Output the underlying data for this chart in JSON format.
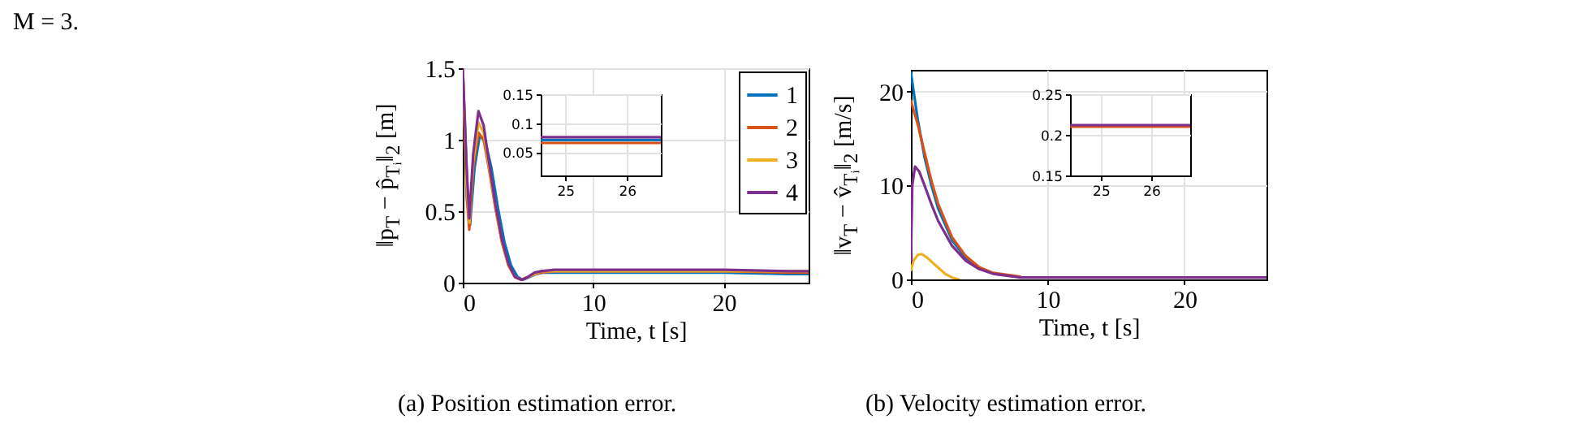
{
  "chart_data": [
    {
      "type": "line",
      "xlabel": "Time, t [s]",
      "ylabel": "‖p$_{T}$ − p̂$_{Tᵢ}$‖$_{2}$ [m]",
      "annotations": [
        "M = 3.",
        "(a) Position estimation error."
      ],
      "xlim": [
        0,
        26.5
      ],
      "ylim": [
        0,
        1.5
      ],
      "xticks": [
        0,
        10,
        20
      ],
      "yticks": [
        0,
        0.5,
        1,
        1.5
      ],
      "grid": true,
      "legend": "top right",
      "line_style": "solid",
      "x": [
        0,
        0.3,
        0.5,
        0.8,
        1.2,
        1.6,
        2,
        2.5,
        3,
        3.5,
        4,
        4.5,
        5,
        5.5,
        6,
        7,
        8,
        10,
        15,
        20,
        25,
        26.5
      ],
      "series": [
        {
          "name": "1",
          "color": "#0072bd",
          "x": [
            0,
            0.35,
            0.55,
            0.9,
            1.3,
            1.75,
            2.2,
            2.7,
            3.2,
            3.7,
            4.2,
            4.6,
            5.1,
            5.6,
            6.1,
            7,
            8,
            10,
            15,
            20,
            25,
            26.5
          ],
          "values": [
            1.5,
            0.65,
            0.4,
            0.8,
            1.03,
            0.98,
            0.8,
            0.52,
            0.28,
            0.12,
            0.04,
            0.02,
            0.04,
            0.06,
            0.07,
            0.07,
            0.07,
            0.07,
            0.07,
            0.07,
            0.06,
            0.06
          ]
        },
        {
          "name": "2",
          "color": "#d95319",
          "values": [
            1.5,
            0.6,
            0.37,
            0.8,
            1.05,
            1.0,
            0.8,
            0.52,
            0.28,
            0.12,
            0.04,
            0.02,
            0.04,
            0.06,
            0.07,
            0.08,
            0.08,
            0.08,
            0.08,
            0.08,
            0.07,
            0.07
          ]
        },
        {
          "name": "3",
          "color": "#edb120",
          "values": [
            1.5,
            0.7,
            0.42,
            0.85,
            1.12,
            1.05,
            0.82,
            0.54,
            0.29,
            0.12,
            0.04,
            0.02,
            0.04,
            0.06,
            0.08,
            0.08,
            0.08,
            0.08,
            0.08,
            0.08,
            0.08,
            0.08
          ]
        },
        {
          "name": "4",
          "color": "#7e2f8e",
          "values": [
            1.5,
            0.8,
            0.45,
            0.9,
            1.2,
            1.1,
            0.85,
            0.55,
            0.3,
            0.13,
            0.04,
            0.02,
            0.04,
            0.07,
            0.08,
            0.09,
            0.09,
            0.09,
            0.09,
            0.09,
            0.08,
            0.08
          ]
        }
      ]
    },
    {
      "type": "line",
      "xlim": [
        24.6,
        26.55
      ],
      "ylim": [
        0.01,
        0.15
      ],
      "xticks": [
        25,
        26
      ],
      "yticks": [
        {
          "value": 0.05,
          "label": "0.05"
        },
        {
          "value": 0.1,
          "label": "0.1"
        },
        {
          "value": 0.15,
          "label": "0.15"
        }
      ],
      "grid": true,
      "line_style": "solid",
      "x": [
        24.6,
        25.5,
        26.55
      ],
      "series": [
        {
          "color": "#0072bd",
          "values": [
            0.071,
            0.071,
            0.071
          ]
        },
        {
          "color": "#d95319",
          "values": [
            0.066,
            0.066,
            0.066
          ]
        },
        {
          "color": "#7e2f8e",
          "values": [
            0.076,
            0.076,
            0.076
          ]
        }
      ]
    },
    {
      "type": "line",
      "xlabel": "Time, t [s]",
      "ylabel": "‖v$_{T}$ − v̂$_{Tᵢ}$‖$_{2}$ [m/s]",
      "annotations": [
        "(b) Velocity estimation error."
      ],
      "xlim": [
        0,
        26
      ],
      "ylim": [
        0,
        22.3
      ],
      "xticks": [
        0,
        10,
        20
      ],
      "yticks": [
        0,
        10,
        20
      ],
      "grid": true,
      "line_style": "solid",
      "series": [
        {
          "color": "#0072bd",
          "x": [
            0,
            0.5,
            1,
            1.5,
            2,
            3,
            4,
            5
          ],
          "values": [
            22,
            17,
            13,
            10,
            7.5,
            4.2,
            2.3,
            1.2
          ]
        },
        {
          "color": "#d95319",
          "x": [
            0,
            0.5,
            1,
            1.5,
            2,
            3,
            4,
            5,
            6,
            8
          ],
          "values": [
            19,
            16.5,
            13.5,
            10.5,
            8,
            4.5,
            2.5,
            1.3,
            0.7,
            0.3
          ]
        },
        {
          "color": "#edb120",
          "x": [
            0,
            0.2,
            0.5,
            0.8,
            1.2,
            1.8,
            2.5,
            3,
            3.5
          ],
          "values": [
            1,
            2,
            2.6,
            2.7,
            2.3,
            1.5,
            0.6,
            0.2,
            0
          ]
        },
        {
          "color": "#7e2f8e",
          "x": [
            0,
            0.1,
            0.3,
            0.6,
            1,
            1.5,
            2,
            3,
            4,
            5,
            6,
            8,
            10,
            26
          ],
          "values": [
            2,
            10,
            12,
            11.5,
            10,
            8,
            6.2,
            3.6,
            2,
            1.1,
            0.6,
            0.2,
            0.2,
            0.2
          ]
        }
      ]
    },
    {
      "type": "line",
      "xlim": [
        24.39,
        26.77
      ],
      "ylim": [
        0.15,
        0.25
      ],
      "xticks": [
        25,
        26
      ],
      "yticks": [
        0.15,
        0.2,
        0.25
      ],
      "grid": true,
      "line_style": "solid",
      "x": [
        24.39,
        25.5,
        26.77
      ],
      "series": [
        {
          "color": "#d95319",
          "values": [
            0.21,
            0.21,
            0.21
          ]
        },
        {
          "color": "#7e2f8e",
          "values": [
            0.212,
            0.212,
            0.212
          ]
        }
      ]
    }
  ]
}
